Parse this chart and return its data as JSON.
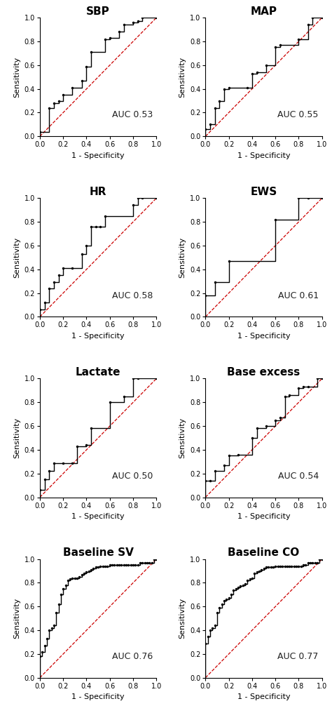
{
  "panels": [
    {
      "title": "SBP",
      "auc": "AUC 0.53",
      "fpr": [
        0.0,
        0.08,
        0.12,
        0.16,
        0.2,
        0.28,
        0.36,
        0.4,
        0.44,
        0.56,
        0.6,
        0.68,
        0.72,
        0.8,
        0.84,
        0.88,
        1.0
      ],
      "tpr": [
        0.04,
        0.24,
        0.28,
        0.3,
        0.35,
        0.41,
        0.47,
        0.59,
        0.71,
        0.82,
        0.83,
        0.88,
        0.94,
        0.96,
        0.97,
        1.0,
        1.0
      ]
    },
    {
      "title": "MAP",
      "auc": "AUC 0.55",
      "fpr": [
        0.0,
        0.04,
        0.08,
        0.12,
        0.16,
        0.2,
        0.36,
        0.4,
        0.44,
        0.52,
        0.6,
        0.64,
        0.8,
        0.88,
        0.92,
        1.0
      ],
      "tpr": [
        0.06,
        0.1,
        0.24,
        0.3,
        0.4,
        0.41,
        0.41,
        0.53,
        0.54,
        0.6,
        0.75,
        0.77,
        0.82,
        0.94,
        1.0,
        1.0
      ]
    },
    {
      "title": "HR",
      "auc": "AUC 0.58",
      "fpr": [
        0.0,
        0.04,
        0.08,
        0.12,
        0.16,
        0.2,
        0.28,
        0.36,
        0.4,
        0.44,
        0.48,
        0.52,
        0.56,
        0.8,
        0.84,
        0.88,
        1.0
      ],
      "tpr": [
        0.06,
        0.12,
        0.24,
        0.29,
        0.35,
        0.41,
        0.41,
        0.53,
        0.6,
        0.76,
        0.76,
        0.76,
        0.85,
        0.94,
        1.0,
        1.0,
        1.0
      ]
    },
    {
      "title": "EWS",
      "auc": "AUC 0.61",
      "fpr": [
        0.0,
        0.08,
        0.2,
        0.6,
        0.8,
        0.88,
        1.0
      ],
      "tpr": [
        0.18,
        0.29,
        0.47,
        0.82,
        1.0,
        1.0,
        1.0
      ]
    },
    {
      "title": "Lactate",
      "auc": "AUC 0.50",
      "fpr": [
        0.0,
        0.04,
        0.08,
        0.12,
        0.2,
        0.28,
        0.32,
        0.4,
        0.44,
        0.6,
        0.72,
        0.8,
        0.84,
        1.0
      ],
      "tpr": [
        0.06,
        0.15,
        0.22,
        0.29,
        0.29,
        0.29,
        0.43,
        0.44,
        0.58,
        0.8,
        0.85,
        1.0,
        1.0,
        1.0
      ]
    },
    {
      "title": "Base excess",
      "auc": "AUC 0.54",
      "fpr": [
        0.0,
        0.04,
        0.08,
        0.16,
        0.2,
        0.28,
        0.4,
        0.44,
        0.52,
        0.6,
        0.64,
        0.68,
        0.72,
        0.8,
        0.84,
        0.88,
        0.96,
        1.0
      ],
      "tpr": [
        0.14,
        0.14,
        0.22,
        0.27,
        0.35,
        0.36,
        0.5,
        0.58,
        0.6,
        0.65,
        0.67,
        0.85,
        0.86,
        0.92,
        0.93,
        0.93,
        1.0,
        1.0
      ]
    },
    {
      "title": "Baseline SV",
      "auc": "AUC 0.76",
      "fpr": [
        0.0,
        0.02,
        0.04,
        0.06,
        0.08,
        0.1,
        0.12,
        0.14,
        0.16,
        0.18,
        0.2,
        0.22,
        0.24,
        0.26,
        0.28,
        0.3,
        0.32,
        0.34,
        0.36,
        0.38,
        0.4,
        0.42,
        0.44,
        0.46,
        0.48,
        0.5,
        0.52,
        0.54,
        0.56,
        0.58,
        0.6,
        0.62,
        0.64,
        0.66,
        0.68,
        0.7,
        0.72,
        0.74,
        0.76,
        0.78,
        0.8,
        0.82,
        0.84,
        0.86,
        0.88,
        0.9,
        0.92,
        0.94,
        0.96,
        0.98,
        1.0
      ],
      "tpr": [
        0.18,
        0.22,
        0.27,
        0.33,
        0.4,
        0.42,
        0.44,
        0.55,
        0.62,
        0.7,
        0.75,
        0.78,
        0.82,
        0.83,
        0.84,
        0.84,
        0.84,
        0.85,
        0.87,
        0.88,
        0.89,
        0.9,
        0.91,
        0.92,
        0.93,
        0.93,
        0.94,
        0.94,
        0.94,
        0.94,
        0.95,
        0.95,
        0.95,
        0.95,
        0.95,
        0.95,
        0.95,
        0.95,
        0.95,
        0.95,
        0.95,
        0.95,
        0.95,
        0.97,
        0.97,
        0.97,
        0.97,
        0.97,
        0.97,
        1.0,
        1.0
      ]
    },
    {
      "title": "Baseline CO",
      "auc": "AUC 0.77",
      "fpr": [
        0.0,
        0.02,
        0.04,
        0.06,
        0.08,
        0.1,
        0.12,
        0.14,
        0.16,
        0.18,
        0.2,
        0.22,
        0.24,
        0.26,
        0.28,
        0.3,
        0.32,
        0.34,
        0.36,
        0.38,
        0.4,
        0.42,
        0.44,
        0.46,
        0.48,
        0.5,
        0.52,
        0.54,
        0.56,
        0.58,
        0.6,
        0.62,
        0.64,
        0.66,
        0.68,
        0.7,
        0.72,
        0.74,
        0.76,
        0.78,
        0.8,
        0.82,
        0.84,
        0.86,
        0.88,
        0.9,
        0.92,
        0.94,
        0.96,
        0.98,
        1.0
      ],
      "tpr": [
        0.29,
        0.35,
        0.4,
        0.42,
        0.44,
        0.55,
        0.59,
        0.62,
        0.65,
        0.66,
        0.67,
        0.7,
        0.74,
        0.75,
        0.76,
        0.77,
        0.78,
        0.79,
        0.82,
        0.83,
        0.84,
        0.88,
        0.89,
        0.9,
        0.91,
        0.92,
        0.93,
        0.93,
        0.93,
        0.93,
        0.94,
        0.94,
        0.94,
        0.94,
        0.94,
        0.94,
        0.94,
        0.94,
        0.94,
        0.94,
        0.94,
        0.94,
        0.95,
        0.95,
        0.97,
        0.97,
        0.97,
        0.97,
        0.97,
        1.0,
        1.0
      ]
    }
  ],
  "diag_color": "#cc0000",
  "curve_color": "#000000",
  "marker_color": "#000000",
  "bg_color": "#ffffff",
  "auc_fontsize": 9,
  "title_fontsize": 11,
  "label_fontsize": 8,
  "tick_fontsize": 7
}
